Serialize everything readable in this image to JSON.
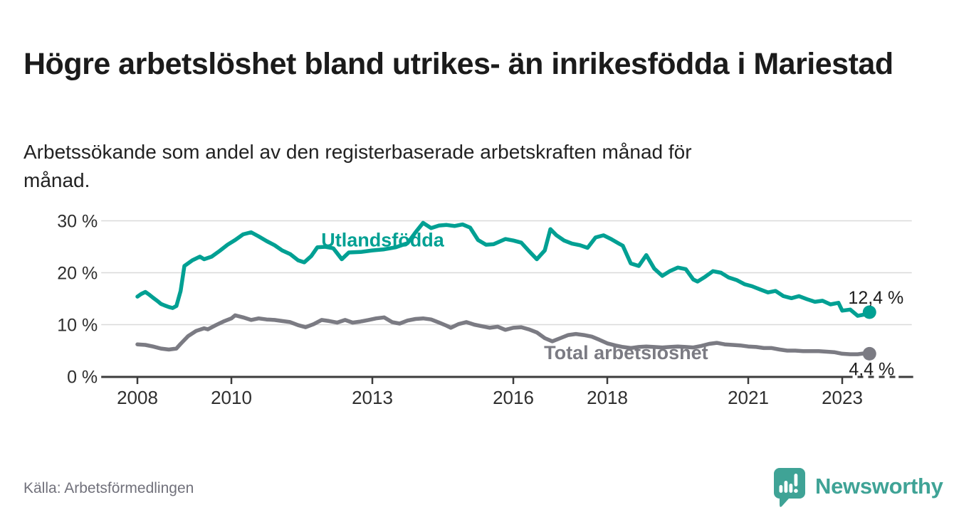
{
  "header": {
    "title": "Högre arbetslöshet bland utrikes- än inrikesfödda i Mariestad",
    "subtitle": "Arbetssökande som andel av den registerbaserade arbetskraften månad för månad."
  },
  "footer": {
    "source": "Källa: Arbetsförmedlingen",
    "brand": "Newsworthy"
  },
  "colors": {
    "series_foreign_born": "#00a093",
    "series_total": "#7b7b83",
    "brand_teal": "#3fa396",
    "grid": "#d9d9d9",
    "axis": "#3c3c3c",
    "text_dark": "#1d1d1d",
    "text_axis": "#2f2f2f",
    "text_muted": "#71717b"
  },
  "chart_data": {
    "type": "line",
    "unit": "percent of registered labour force",
    "frequency": "monthly",
    "x_axis": {
      "tick_years": [
        "2008",
        "2010",
        "2013",
        "2016",
        "2018",
        "2021",
        "2023"
      ],
      "range_years": [
        2007.23,
        2024.48
      ],
      "grid": false
    },
    "y_axis": {
      "ticks_percent": [
        0,
        10,
        20,
        30
      ],
      "tick_suffix": " %",
      "range_percent": [
        0,
        33.5
      ],
      "grid": true
    },
    "legend_position": "inline-labels",
    "annotations": {
      "preliminary_axis_dash": {
        "from_year": 2023.22,
        "to_year": 2024.2
      }
    },
    "series": [
      {
        "name": "Utlandsfödda",
        "color": "#00a093",
        "inline_label": {
          "year": 2013.22,
          "percent": 26.3
        },
        "end_label": "12,4 %",
        "end_value_percent": 12.4,
        "points": [
          [
            2008.0,
            15.4
          ],
          [
            2008.08,
            15.9
          ],
          [
            2008.17,
            16.3
          ],
          [
            2008.25,
            15.8
          ],
          [
            2008.33,
            15.2
          ],
          [
            2008.42,
            14.6
          ],
          [
            2008.5,
            14.0
          ],
          [
            2008.58,
            13.7
          ],
          [
            2008.67,
            13.4
          ],
          [
            2008.75,
            13.2
          ],
          [
            2008.83,
            13.6
          ],
          [
            2008.92,
            16.5
          ],
          [
            2009.0,
            21.3
          ],
          [
            2009.17,
            22.4
          ],
          [
            2009.33,
            23.1
          ],
          [
            2009.42,
            22.6
          ],
          [
            2009.58,
            23.1
          ],
          [
            2009.75,
            24.2
          ],
          [
            2009.92,
            25.4
          ],
          [
            2010.08,
            26.3
          ],
          [
            2010.25,
            27.4
          ],
          [
            2010.42,
            27.8
          ],
          [
            2010.58,
            27.0
          ],
          [
            2010.75,
            26.1
          ],
          [
            2010.92,
            25.3
          ],
          [
            2011.08,
            24.3
          ],
          [
            2011.25,
            23.6
          ],
          [
            2011.42,
            22.4
          ],
          [
            2011.55,
            22.0
          ],
          [
            2011.7,
            23.2
          ],
          [
            2011.83,
            24.9
          ],
          [
            2012.0,
            25.0
          ],
          [
            2012.17,
            24.7
          ],
          [
            2012.35,
            22.6
          ],
          [
            2012.5,
            23.9
          ],
          [
            2012.75,
            24.0
          ],
          [
            2013.0,
            24.3
          ],
          [
            2013.25,
            24.5
          ],
          [
            2013.5,
            24.9
          ],
          [
            2013.75,
            25.7
          ],
          [
            2013.92,
            27.8
          ],
          [
            2014.08,
            29.6
          ],
          [
            2014.25,
            28.6
          ],
          [
            2014.42,
            29.1
          ],
          [
            2014.58,
            29.2
          ],
          [
            2014.75,
            29.0
          ],
          [
            2014.92,
            29.3
          ],
          [
            2015.08,
            28.7
          ],
          [
            2015.25,
            26.3
          ],
          [
            2015.42,
            25.4
          ],
          [
            2015.58,
            25.5
          ],
          [
            2015.83,
            26.5
          ],
          [
            2016.0,
            26.2
          ],
          [
            2016.17,
            25.8
          ],
          [
            2016.33,
            24.2
          ],
          [
            2016.5,
            22.6
          ],
          [
            2016.67,
            24.3
          ],
          [
            2016.79,
            28.4
          ],
          [
            2016.92,
            27.2
          ],
          [
            2017.08,
            26.2
          ],
          [
            2017.25,
            25.6
          ],
          [
            2017.42,
            25.3
          ],
          [
            2017.58,
            24.8
          ],
          [
            2017.75,
            26.8
          ],
          [
            2017.92,
            27.2
          ],
          [
            2018.08,
            26.5
          ],
          [
            2018.25,
            25.6
          ],
          [
            2018.33,
            25.2
          ],
          [
            2018.5,
            21.8
          ],
          [
            2018.67,
            21.3
          ],
          [
            2018.83,
            23.4
          ],
          [
            2019.0,
            20.8
          ],
          [
            2019.17,
            19.4
          ],
          [
            2019.33,
            20.3
          ],
          [
            2019.5,
            21.0
          ],
          [
            2019.67,
            20.7
          ],
          [
            2019.83,
            18.7
          ],
          [
            2019.92,
            18.3
          ],
          [
            2020.08,
            19.2
          ],
          [
            2020.25,
            20.3
          ],
          [
            2020.42,
            20.0
          ],
          [
            2020.58,
            19.1
          ],
          [
            2020.75,
            18.6
          ],
          [
            2020.92,
            17.8
          ],
          [
            2021.08,
            17.4
          ],
          [
            2021.25,
            16.8
          ],
          [
            2021.42,
            16.2
          ],
          [
            2021.58,
            16.5
          ],
          [
            2021.75,
            15.5
          ],
          [
            2021.92,
            15.1
          ],
          [
            2022.08,
            15.5
          ],
          [
            2022.25,
            14.9
          ],
          [
            2022.42,
            14.4
          ],
          [
            2022.58,
            14.6
          ],
          [
            2022.75,
            13.9
          ],
          [
            2022.92,
            14.2
          ],
          [
            2023.0,
            12.7
          ],
          [
            2023.17,
            12.9
          ],
          [
            2023.33,
            11.7
          ],
          [
            2023.5,
            12.0
          ],
          [
            2023.58,
            12.4
          ]
        ]
      },
      {
        "name": "Total arbetslöshet",
        "color": "#7b7b83",
        "inline_label": {
          "year": 2018.4,
          "percent": 4.6
        },
        "end_label": "4,4 %",
        "end_value_percent": 4.4,
        "points": [
          [
            2008.0,
            6.2
          ],
          [
            2008.17,
            6.1
          ],
          [
            2008.33,
            5.8
          ],
          [
            2008.5,
            5.4
          ],
          [
            2008.67,
            5.2
          ],
          [
            2008.83,
            5.4
          ],
          [
            2008.92,
            6.3
          ],
          [
            2009.08,
            7.8
          ],
          [
            2009.25,
            8.8
          ],
          [
            2009.42,
            9.3
          ],
          [
            2009.5,
            9.1
          ],
          [
            2009.67,
            9.9
          ],
          [
            2009.83,
            10.6
          ],
          [
            2010.0,
            11.2
          ],
          [
            2010.08,
            11.8
          ],
          [
            2010.25,
            11.4
          ],
          [
            2010.42,
            10.9
          ],
          [
            2010.58,
            11.2
          ],
          [
            2010.75,
            11.0
          ],
          [
            2010.92,
            10.9
          ],
          [
            2011.08,
            10.7
          ],
          [
            2011.25,
            10.5
          ],
          [
            2011.42,
            9.9
          ],
          [
            2011.58,
            9.5
          ],
          [
            2011.75,
            10.1
          ],
          [
            2011.92,
            10.9
          ],
          [
            2012.08,
            10.7
          ],
          [
            2012.25,
            10.4
          ],
          [
            2012.42,
            10.9
          ],
          [
            2012.58,
            10.4
          ],
          [
            2012.75,
            10.6
          ],
          [
            2012.92,
            10.9
          ],
          [
            2013.08,
            11.2
          ],
          [
            2013.25,
            11.4
          ],
          [
            2013.42,
            10.5
          ],
          [
            2013.58,
            10.2
          ],
          [
            2013.75,
            10.8
          ],
          [
            2013.92,
            11.1
          ],
          [
            2014.08,
            11.2
          ],
          [
            2014.25,
            11.0
          ],
          [
            2014.42,
            10.4
          ],
          [
            2014.58,
            9.8
          ],
          [
            2014.67,
            9.4
          ],
          [
            2014.83,
            10.1
          ],
          [
            2015.0,
            10.5
          ],
          [
            2015.17,
            10.0
          ],
          [
            2015.33,
            9.7
          ],
          [
            2015.5,
            9.4
          ],
          [
            2015.67,
            9.6
          ],
          [
            2015.83,
            9.0
          ],
          [
            2016.0,
            9.4
          ],
          [
            2016.17,
            9.5
          ],
          [
            2016.33,
            9.1
          ],
          [
            2016.5,
            8.5
          ],
          [
            2016.67,
            7.4
          ],
          [
            2016.83,
            6.8
          ],
          [
            2017.0,
            7.4
          ],
          [
            2017.17,
            8.0
          ],
          [
            2017.33,
            8.2
          ],
          [
            2017.5,
            8.0
          ],
          [
            2017.67,
            7.7
          ],
          [
            2017.83,
            7.1
          ],
          [
            2018.0,
            6.4
          ],
          [
            2018.17,
            6.0
          ],
          [
            2018.33,
            5.7
          ],
          [
            2018.5,
            5.5
          ],
          [
            2018.67,
            5.7
          ],
          [
            2018.83,
            5.8
          ],
          [
            2019.0,
            5.7
          ],
          [
            2019.17,
            5.6
          ],
          [
            2019.33,
            5.7
          ],
          [
            2019.5,
            5.8
          ],
          [
            2019.67,
            5.7
          ],
          [
            2019.83,
            5.6
          ],
          [
            2020.0,
            5.9
          ],
          [
            2020.17,
            6.3
          ],
          [
            2020.33,
            6.5
          ],
          [
            2020.5,
            6.2
          ],
          [
            2020.67,
            6.1
          ],
          [
            2020.83,
            6.0
          ],
          [
            2021.0,
            5.8
          ],
          [
            2021.17,
            5.7
          ],
          [
            2021.33,
            5.5
          ],
          [
            2021.5,
            5.5
          ],
          [
            2021.67,
            5.2
          ],
          [
            2021.83,
            5.0
          ],
          [
            2022.0,
            5.0
          ],
          [
            2022.17,
            4.9
          ],
          [
            2022.33,
            4.9
          ],
          [
            2022.5,
            4.9
          ],
          [
            2022.67,
            4.8
          ],
          [
            2022.83,
            4.7
          ],
          [
            2023.0,
            4.4
          ],
          [
            2023.17,
            4.3
          ],
          [
            2023.33,
            4.3
          ],
          [
            2023.5,
            4.5
          ],
          [
            2023.58,
            4.4
          ]
        ]
      }
    ]
  }
}
